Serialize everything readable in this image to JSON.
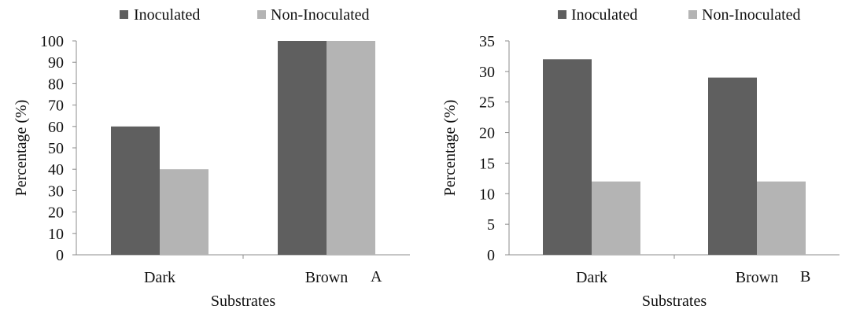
{
  "chart_data": [
    {
      "type": "bar",
      "panel_label": "A",
      "categories": [
        "Dark",
        "Brown"
      ],
      "series": [
        {
          "name": "Inoculated",
          "color": "#5f5f5f",
          "values": [
            60,
            100
          ]
        },
        {
          "name": "Non-Inoculated",
          "color": "#b4b4b4",
          "values": [
            40,
            100
          ]
        }
      ],
      "xlabel": "Substrates",
      "ylabel": "Percentage   (%)",
      "ylim": [
        0,
        100
      ],
      "yticks": [
        0,
        10,
        20,
        30,
        40,
        50,
        60,
        70,
        80,
        90,
        100
      ],
      "grid": false,
      "legend": "top"
    },
    {
      "type": "bar",
      "panel_label": "B",
      "categories": [
        "Dark",
        "Brown"
      ],
      "series": [
        {
          "name": "Inoculated",
          "color": "#5f5f5f",
          "values": [
            32,
            29
          ]
        },
        {
          "name": "Non-Inoculated",
          "color": "#b4b4b4",
          "values": [
            12,
            12
          ]
        }
      ],
      "xlabel": "Substrates",
      "ylabel": "Percentage   (%)",
      "ylim": [
        0,
        35
      ],
      "yticks": [
        0,
        5,
        10,
        15,
        20,
        25,
        30,
        35
      ],
      "grid": false,
      "legend": "top"
    }
  ]
}
